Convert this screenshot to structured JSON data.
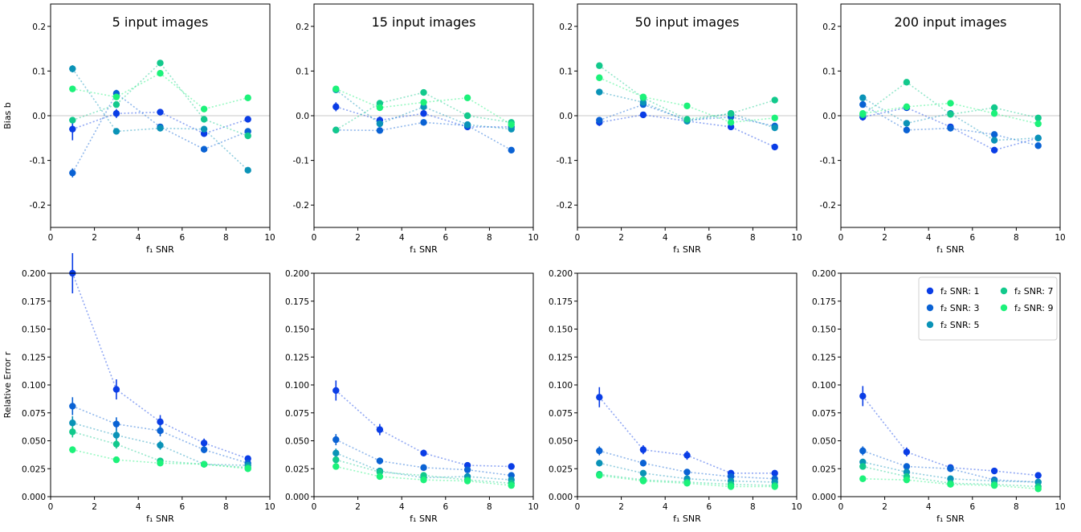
{
  "series_colors": [
    "#0a3de6",
    "#0a62d4",
    "#0a93b7",
    "#12c98c",
    "#1cf27a"
  ],
  "chart_data": [
    {
      "type": "scatter",
      "title": "5 input images",
      "xlabel": "f₁ SNR",
      "ylabel": "Bias b",
      "xlim": [
        0,
        10
      ],
      "ylim": [
        -0.25,
        0.25
      ],
      "xticks": [
        "0",
        "2",
        "4",
        "6",
        "8",
        "10"
      ],
      "yticks": [
        "-0.2",
        "-0.1",
        "0.0",
        "0.1",
        "0.2"
      ],
      "x": [
        1,
        3,
        5,
        7,
        9
      ],
      "reference_line": 0,
      "series": [
        {
          "name": "f₂ SNR: 1",
          "values": [
            -0.03,
            0.005,
            0.008,
            -0.04,
            -0.008
          ],
          "errors": [
            0.025,
            0.01,
            0.005,
            0.005,
            0.005
          ]
        },
        {
          "name": "f₂ SNR: 3",
          "values": [
            -0.128,
            0.05,
            -0.025,
            -0.075,
            -0.035
          ],
          "errors": [
            0.01,
            0.008,
            0.005,
            0.005,
            0.005
          ]
        },
        {
          "name": "f₂ SNR: 5",
          "values": [
            0.105,
            -0.035,
            -0.028,
            -0.03,
            -0.122
          ],
          "errors": [
            0.008,
            0.005,
            0.005,
            0.005,
            0.005
          ]
        },
        {
          "name": "f₂ SNR: 7",
          "values": [
            -0.01,
            0.025,
            0.118,
            -0.008,
            -0.045
          ],
          "errors": [
            0.005,
            0.005,
            0.005,
            0.005,
            0.005
          ]
        },
        {
          "name": "f₂ SNR: 9",
          "values": [
            0.06,
            0.042,
            0.095,
            0.015,
            0.04
          ],
          "errors": [
            0.005,
            0.005,
            0.005,
            0.005,
            0.005
          ]
        }
      ]
    },
    {
      "type": "scatter",
      "title": "15 input images",
      "xlabel": "f₁ SNR",
      "ylabel": "",
      "xlim": [
        0,
        10
      ],
      "ylim": [
        -0.25,
        0.25
      ],
      "xticks": [
        "0",
        "2",
        "4",
        "6",
        "8",
        "10"
      ],
      "yticks": [
        "-0.2",
        "-0.1",
        "0.0",
        "0.1",
        "0.2"
      ],
      "x": [
        1,
        3,
        5,
        7,
        9
      ],
      "reference_line": 0,
      "series": [
        {
          "name": "f₂ SNR: 1",
          "values": [
            0.02,
            -0.01,
            0.005,
            -0.025,
            -0.025
          ],
          "errors": [
            0.01,
            0.008,
            0.005,
            0.005,
            0.005
          ]
        },
        {
          "name": "f₂ SNR: 3",
          "values": [
            -0.032,
            -0.033,
            -0.015,
            -0.022,
            -0.077
          ],
          "errors": [
            0.005,
            0.005,
            0.005,
            0.005,
            0.005
          ]
        },
        {
          "name": "f₂ SNR: 5",
          "values": [
            0.058,
            -0.018,
            0.02,
            -0.02,
            -0.03
          ],
          "errors": [
            0.005,
            0.005,
            0.005,
            0.005,
            0.005
          ]
        },
        {
          "name": "f₂ SNR: 7",
          "values": [
            -0.032,
            0.028,
            0.052,
            0.0,
            -0.015
          ],
          "errors": [
            0.005,
            0.005,
            0.005,
            0.005,
            0.005
          ]
        },
        {
          "name": "f₂ SNR: 9",
          "values": [
            0.06,
            0.018,
            0.03,
            0.04,
            -0.02
          ],
          "errors": [
            0.005,
            0.005,
            0.005,
            0.005,
            0.005
          ]
        }
      ]
    },
    {
      "type": "scatter",
      "title": "50 input images",
      "xlabel": "f₁ SNR",
      "ylabel": "",
      "xlim": [
        0,
        10
      ],
      "ylim": [
        -0.25,
        0.25
      ],
      "xticks": [
        "0",
        "2",
        "4",
        "6",
        "8",
        "10"
      ],
      "yticks": [
        "-0.2",
        "-0.1",
        "0.0",
        "0.1",
        "0.2"
      ],
      "x": [
        1,
        3,
        5,
        7,
        9
      ],
      "reference_line": 0,
      "series": [
        {
          "name": "f₂ SNR: 1",
          "values": [
            -0.015,
            0.002,
            -0.012,
            -0.025,
            -0.07
          ],
          "errors": [
            0.008,
            0.005,
            0.005,
            0.005,
            0.005
          ]
        },
        {
          "name": "f₂ SNR: 3",
          "values": [
            -0.01,
            0.025,
            -0.01,
            -0.003,
            -0.023
          ],
          "errors": [
            0.005,
            0.005,
            0.005,
            0.005,
            0.005
          ]
        },
        {
          "name": "f₂ SNR: 5",
          "values": [
            0.053,
            0.03,
            -0.012,
            0.005,
            -0.027
          ],
          "errors": [
            0.005,
            0.005,
            0.005,
            0.005,
            0.005
          ]
        },
        {
          "name": "f₂ SNR: 7",
          "values": [
            0.112,
            0.04,
            -0.008,
            0.005,
            0.035
          ],
          "errors": [
            0.005,
            0.005,
            0.005,
            0.005,
            0.005
          ]
        },
        {
          "name": "f₂ SNR: 9",
          "values": [
            0.085,
            0.042,
            0.022,
            -0.015,
            -0.005
          ],
          "errors": [
            0.005,
            0.005,
            0.005,
            0.005,
            0.005
          ]
        }
      ]
    },
    {
      "type": "scatter",
      "title": "200 input images",
      "xlabel": "f₁ SNR",
      "ylabel": "",
      "xlim": [
        0,
        10
      ],
      "ylim": [
        -0.25,
        0.25
      ],
      "xticks": [
        "0",
        "2",
        "4",
        "6",
        "8",
        "10"
      ],
      "yticks": [
        "-0.2",
        "-0.1",
        "0.0",
        "0.1",
        "0.2"
      ],
      "x": [
        1,
        3,
        5,
        7,
        9
      ],
      "reference_line": 0,
      "series": [
        {
          "name": "f₂ SNR: 1",
          "values": [
            -0.003,
            0.018,
            -0.025,
            -0.077,
            -0.05
          ],
          "errors": [
            0.008,
            0.005,
            0.005,
            0.005,
            0.005
          ]
        },
        {
          "name": "f₂ SNR: 3",
          "values": [
            0.025,
            -0.032,
            -0.028,
            -0.042,
            -0.067
          ],
          "errors": [
            0.005,
            0.005,
            0.005,
            0.005,
            0.005
          ]
        },
        {
          "name": "f₂ SNR: 5",
          "values": [
            0.04,
            -0.017,
            0.005,
            -0.055,
            -0.05
          ],
          "errors": [
            0.005,
            0.005,
            0.005,
            0.005,
            0.005
          ]
        },
        {
          "name": "f₂ SNR: 7",
          "values": [
            0.002,
            0.075,
            0.003,
            0.018,
            -0.005
          ],
          "errors": [
            0.005,
            0.005,
            0.005,
            0.005,
            0.005
          ]
        },
        {
          "name": "f₂ SNR: 9",
          "values": [
            0.005,
            0.02,
            0.028,
            0.005,
            -0.018
          ],
          "errors": [
            0.005,
            0.005,
            0.005,
            0.005,
            0.005
          ]
        }
      ]
    },
    {
      "type": "scatter",
      "title": "",
      "xlabel": "f₁ SNR",
      "ylabel": "Relative Error r",
      "xlim": [
        0,
        10
      ],
      "ylim": [
        0,
        0.2
      ],
      "xticks": [
        "0",
        "2",
        "4",
        "6",
        "8",
        "10"
      ],
      "yticks": [
        "0.000",
        "0.025",
        "0.050",
        "0.075",
        "0.100",
        "0.125",
        "0.150",
        "0.175",
        "0.200"
      ],
      "x": [
        1,
        3,
        5,
        7,
        9
      ],
      "series": [
        {
          "name": "f₂ SNR: 1",
          "values": [
            0.2,
            0.096,
            0.067,
            0.048,
            0.034
          ],
          "errors": [
            0.018,
            0.009,
            0.006,
            0.004,
            0.003
          ]
        },
        {
          "name": "f₂ SNR: 3",
          "values": [
            0.081,
            0.065,
            0.059,
            0.042,
            0.03
          ],
          "errors": [
            0.008,
            0.006,
            0.005,
            0.003,
            0.002
          ]
        },
        {
          "name": "f₂ SNR: 5",
          "values": [
            0.066,
            0.055,
            0.046,
            0.029,
            0.028
          ],
          "errors": [
            0.006,
            0.005,
            0.004,
            0.002,
            0.002
          ]
        },
        {
          "name": "f₂ SNR: 7",
          "values": [
            0.058,
            0.047,
            0.032,
            0.029,
            0.026
          ],
          "errors": [
            0.005,
            0.004,
            0.002,
            0.002,
            0.002
          ]
        },
        {
          "name": "f₂ SNR: 9",
          "values": [
            0.042,
            0.033,
            0.03,
            0.029,
            0.025
          ],
          "errors": [
            0.003,
            0.002,
            0.002,
            0.002,
            0.002
          ]
        }
      ]
    },
    {
      "type": "scatter",
      "title": "",
      "xlabel": "f₁ SNR",
      "ylabel": "",
      "xlim": [
        0,
        10
      ],
      "ylim": [
        0,
        0.2
      ],
      "xticks": [
        "0",
        "2",
        "4",
        "6",
        "8",
        "10"
      ],
      "yticks": [
        "0.000",
        "0.025",
        "0.050",
        "0.075",
        "0.100",
        "0.125",
        "0.150",
        "0.175",
        "0.200"
      ],
      "x": [
        1,
        3,
        5,
        7,
        9
      ],
      "series": [
        {
          "name": "f₂ SNR: 1",
          "values": [
            0.095,
            0.06,
            0.039,
            0.028,
            0.027
          ],
          "errors": [
            0.009,
            0.005,
            0.003,
            0.002,
            0.002
          ]
        },
        {
          "name": "f₂ SNR: 3",
          "values": [
            0.051,
            0.032,
            0.026,
            0.024,
            0.019
          ],
          "errors": [
            0.005,
            0.003,
            0.002,
            0.002,
            0.002
          ]
        },
        {
          "name": "f₂ SNR: 5",
          "values": [
            0.039,
            0.023,
            0.017,
            0.018,
            0.015
          ],
          "errors": [
            0.004,
            0.002,
            0.001,
            0.001,
            0.001
          ]
        },
        {
          "name": "f₂ SNR: 7",
          "values": [
            0.033,
            0.022,
            0.019,
            0.015,
            0.012
          ],
          "errors": [
            0.003,
            0.002,
            0.001,
            0.001,
            0.001
          ]
        },
        {
          "name": "f₂ SNR: 9",
          "values": [
            0.027,
            0.018,
            0.015,
            0.014,
            0.01
          ],
          "errors": [
            0.002,
            0.001,
            0.001,
            0.001,
            0.001
          ]
        }
      ]
    },
    {
      "type": "scatter",
      "title": "",
      "xlabel": "f₁ SNR",
      "ylabel": "",
      "xlim": [
        0,
        10
      ],
      "ylim": [
        0,
        0.2
      ],
      "xticks": [
        "0",
        "2",
        "4",
        "6",
        "8",
        "10"
      ],
      "yticks": [
        "0.000",
        "0.025",
        "0.050",
        "0.075",
        "0.100",
        "0.125",
        "0.150",
        "0.175",
        "0.200"
      ],
      "x": [
        1,
        3,
        5,
        7,
        9
      ],
      "series": [
        {
          "name": "f₂ SNR: 1",
          "values": [
            0.089,
            0.042,
            0.037,
            0.021,
            0.021
          ],
          "errors": [
            0.009,
            0.004,
            0.004,
            0.002,
            0.002
          ]
        },
        {
          "name": "f₂ SNR: 3",
          "values": [
            0.041,
            0.03,
            0.022,
            0.018,
            0.016
          ],
          "errors": [
            0.004,
            0.003,
            0.002,
            0.002,
            0.002
          ]
        },
        {
          "name": "f₂ SNR: 5",
          "values": [
            0.03,
            0.021,
            0.016,
            0.014,
            0.013
          ],
          "errors": [
            0.003,
            0.002,
            0.001,
            0.001,
            0.001
          ]
        },
        {
          "name": "f₂ SNR: 7",
          "values": [
            0.02,
            0.015,
            0.013,
            0.011,
            0.01
          ],
          "errors": [
            0.002,
            0.001,
            0.001,
            0.001,
            0.001
          ]
        },
        {
          "name": "f₂ SNR: 9",
          "values": [
            0.019,
            0.014,
            0.012,
            0.009,
            0.009
          ],
          "errors": [
            0.002,
            0.001,
            0.001,
            0.001,
            0.001
          ]
        }
      ]
    },
    {
      "type": "scatter",
      "title": "",
      "xlabel": "f₁ SNR",
      "ylabel": "",
      "xlim": [
        0,
        10
      ],
      "ylim": [
        0,
        0.2
      ],
      "xticks": [
        "0",
        "2",
        "4",
        "6",
        "8",
        "10"
      ],
      "yticks": [
        "0.000",
        "0.025",
        "0.050",
        "0.075",
        "0.100",
        "0.125",
        "0.150",
        "0.175",
        "0.200"
      ],
      "x": [
        1,
        3,
        5,
        7,
        9
      ],
      "legend": {
        "placement": "top-right",
        "columns": 2,
        "entries": [
          "f₂ SNR: 1",
          "f₂ SNR: 3",
          "f₂ SNR: 5",
          "f₂ SNR: 7",
          "f₂ SNR: 9"
        ]
      },
      "series": [
        {
          "name": "f₂ SNR: 1",
          "values": [
            0.09,
            0.04,
            0.026,
            0.023,
            0.019
          ],
          "errors": [
            0.009,
            0.004,
            0.002,
            0.002,
            0.002
          ]
        },
        {
          "name": "f₂ SNR: 3",
          "values": [
            0.041,
            0.027,
            0.025,
            0.015,
            0.013
          ],
          "errors": [
            0.004,
            0.002,
            0.002,
            0.001,
            0.001
          ]
        },
        {
          "name": "f₂ SNR: 5",
          "values": [
            0.031,
            0.022,
            0.016,
            0.014,
            0.013
          ],
          "errors": [
            0.003,
            0.002,
            0.001,
            0.001,
            0.001
          ]
        },
        {
          "name": "f₂ SNR: 7",
          "values": [
            0.027,
            0.018,
            0.012,
            0.011,
            0.009
          ],
          "errors": [
            0.002,
            0.001,
            0.001,
            0.001,
            0.001
          ]
        },
        {
          "name": "f₂ SNR: 9",
          "values": [
            0.016,
            0.015,
            0.011,
            0.01,
            0.007
          ],
          "errors": [
            0.002,
            0.001,
            0.001,
            0.001,
            0.001
          ]
        }
      ]
    }
  ]
}
